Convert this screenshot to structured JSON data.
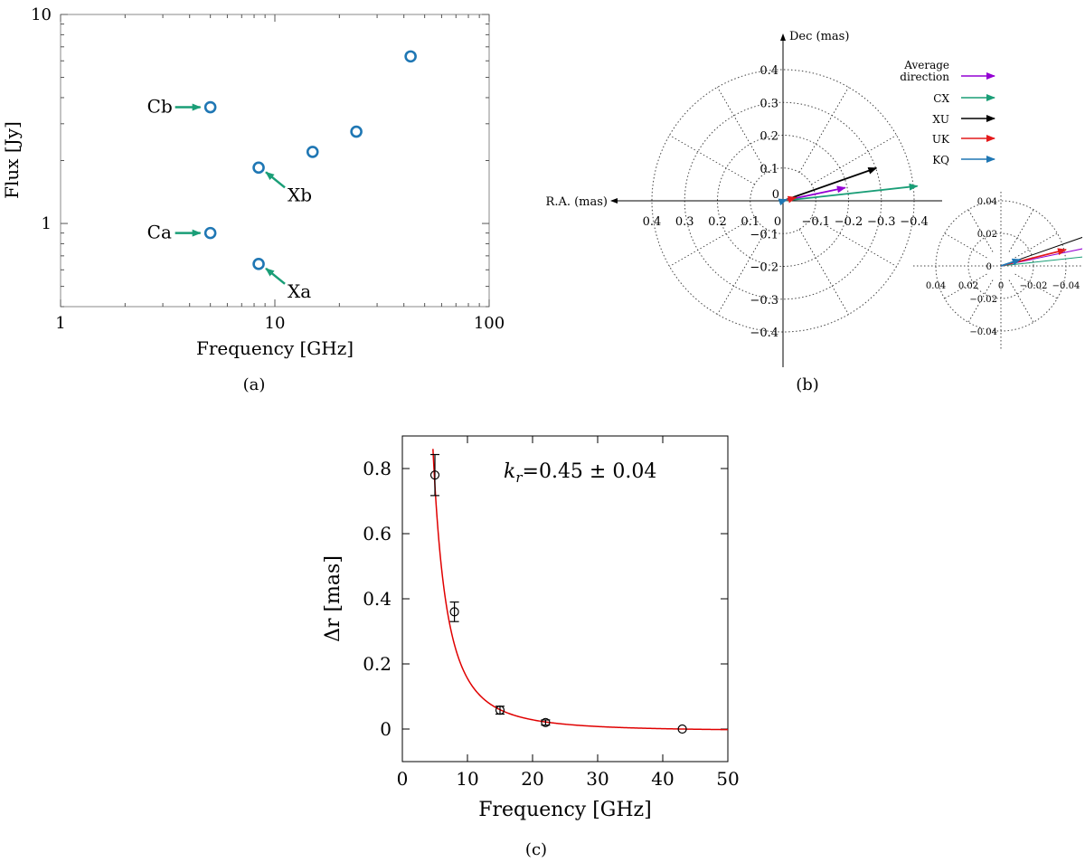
{
  "chart_data": [
    {
      "type": "scatter",
      "panel_label": "(a)",
      "xlabel": "Frequency [GHz]",
      "ylabel": "Flux [Jy]",
      "xscale": "log",
      "yscale": "log",
      "xlim": [
        1,
        100
      ],
      "ylim": [
        0.4,
        10
      ],
      "xticks": [
        {
          "v": 1,
          "label": "1"
        },
        {
          "v": 10,
          "label": "10"
        },
        {
          "v": 100,
          "label": "100"
        }
      ],
      "yticks": [
        {
          "v": 1,
          "label": "1"
        },
        {
          "v": 10,
          "label": "10"
        }
      ],
      "points": [
        {
          "x": 5.0,
          "y": 3.6
        },
        {
          "x": 5.0,
          "y": 0.9
        },
        {
          "x": 8.4,
          "y": 1.85
        },
        {
          "x": 8.4,
          "y": 0.64
        },
        {
          "x": 15.0,
          "y": 2.2
        },
        {
          "x": 24.0,
          "y": 2.75
        },
        {
          "x": 43.0,
          "y": 6.3
        }
      ],
      "annotations": [
        {
          "text": "Cb",
          "x": 5.0,
          "y": 3.6,
          "side": "left"
        },
        {
          "text": "Ca",
          "x": 5.0,
          "y": 0.9,
          "side": "left"
        },
        {
          "text": "Xb",
          "x": 8.4,
          "y": 1.85,
          "side": "lower-right"
        },
        {
          "text": "Xa",
          "x": 8.4,
          "y": 0.64,
          "side": "lower-right"
        }
      ],
      "colors": {
        "points": "#1f77b4",
        "arrows": "#1a9e77"
      }
    },
    {
      "type": "polar-vectors",
      "panel_label": "(b)",
      "xlabel": "R.A. (mas)",
      "ylabel": "Dec (mas)",
      "rmax": 0.4,
      "rings": [
        0.1,
        0.2,
        0.3,
        0.4
      ],
      "xticks": [
        {
          "v": 0.4,
          "label": "0.4"
        },
        {
          "v": 0.3,
          "label": "0.3"
        },
        {
          "v": 0.2,
          "label": "0.2"
        },
        {
          "v": 0.1,
          "label": "0.1"
        },
        {
          "v": 0,
          "label": "0"
        },
        {
          "v": -0.1,
          "label": "−0.1"
        },
        {
          "v": -0.2,
          "label": "−0.2"
        },
        {
          "v": -0.3,
          "label": "−0.3"
        },
        {
          "v": -0.4,
          "label": "−0.4"
        }
      ],
      "yticks": [
        {
          "v": 0.4,
          "label": "0.4"
        },
        {
          "v": 0.3,
          "label": "0.3"
        },
        {
          "v": 0.2,
          "label": "0.2"
        },
        {
          "v": 0.1,
          "label": "0.1"
        },
        {
          "v": 0,
          "label": "0"
        },
        {
          "v": -0.1,
          "label": "−0.1"
        },
        {
          "v": -0.2,
          "label": "−0.2"
        },
        {
          "v": -0.3,
          "label": "−0.3"
        },
        {
          "v": -0.4,
          "label": "−0.4"
        }
      ],
      "vectors": [
        {
          "name": "Average direction",
          "dx": -0.19,
          "dy": 0.04,
          "color": "#9400d3"
        },
        {
          "name": "CX",
          "dx": -0.41,
          "dy": 0.045,
          "color": "#1a9e77"
        },
        {
          "name": "XU",
          "dx": -0.285,
          "dy": 0.1,
          "color": "#000000"
        },
        {
          "name": "UK",
          "dx": -0.04,
          "dy": 0.01,
          "color": "#e41a1c"
        },
        {
          "name": "KQ",
          "dx": -0.012,
          "dy": 0.004,
          "color": "#1f77b4"
        }
      ],
      "legend": [
        {
          "label_lines": [
            "Average",
            "direction"
          ],
          "color": "#9400d3"
        },
        {
          "label_lines": [
            "CX"
          ],
          "color": "#1a9e77"
        },
        {
          "label_lines": [
            "XU"
          ],
          "color": "#000000"
        },
        {
          "label_lines": [
            "UK"
          ],
          "color": "#e41a1c"
        },
        {
          "label_lines": [
            "KQ"
          ],
          "color": "#1f77b4"
        }
      ],
      "inset": {
        "rmax": 0.04,
        "rings": [
          0.02,
          0.04
        ],
        "xticks": [
          {
            "v": 0.04,
            "label": "0.04"
          },
          {
            "v": 0.02,
            "label": "0.02"
          },
          {
            "v": 0,
            "label": "0"
          },
          {
            "v": -0.02,
            "label": "−0.02"
          },
          {
            "v": -0.04,
            "label": "−0.04"
          }
        ],
        "yticks": [
          {
            "v": 0.04,
            "label": "0.04"
          },
          {
            "v": 0.02,
            "label": "0.02"
          },
          {
            "v": 0,
            "label": "0"
          },
          {
            "v": -0.02,
            "label": "−0.02"
          },
          {
            "v": -0.04,
            "label": "−0.04"
          }
        ]
      }
    },
    {
      "type": "scatter",
      "panel_label": "(c)",
      "xlabel": "Frequency [GHz]",
      "ylabel": "Δr [mas]",
      "xlim": [
        0,
        50
      ],
      "ylim": [
        -0.1,
        0.9
      ],
      "xticks": [
        {
          "v": 0,
          "label": "0"
        },
        {
          "v": 10,
          "label": "10"
        },
        {
          "v": 20,
          "label": "20"
        },
        {
          "v": 30,
          "label": "30"
        },
        {
          "v": 40,
          "label": "40"
        },
        {
          "v": 50,
          "label": "50"
        }
      ],
      "yticks": [
        {
          "v": 0,
          "label": "0"
        },
        {
          "v": 0.2,
          "label": "0.2"
        },
        {
          "v": 0.4,
          "label": "0.4"
        },
        {
          "v": 0.6,
          "label": "0.6"
        },
        {
          "v": 0.8,
          "label": "0.8"
        }
      ],
      "points": [
        {
          "x": 5,
          "y": 0.78,
          "err": 0.063
        },
        {
          "x": 8,
          "y": 0.36,
          "err": 0.03
        },
        {
          "x": 15,
          "y": 0.058,
          "err": 0.012
        },
        {
          "x": 22,
          "y": 0.02,
          "err": 0.008
        },
        {
          "x": 43,
          "y": 0.0,
          "err": 0.0
        }
      ],
      "fit": {
        "model": "A*(nu^(-1/kr) - 43^(-1/kr))",
        "kr": 0.45,
        "A": 27.0,
        "color": "#e00000"
      },
      "annotation_prefix": "k",
      "annotation_sub": "r",
      "annotation_value": "=0.45 ± 0.04"
    }
  ]
}
